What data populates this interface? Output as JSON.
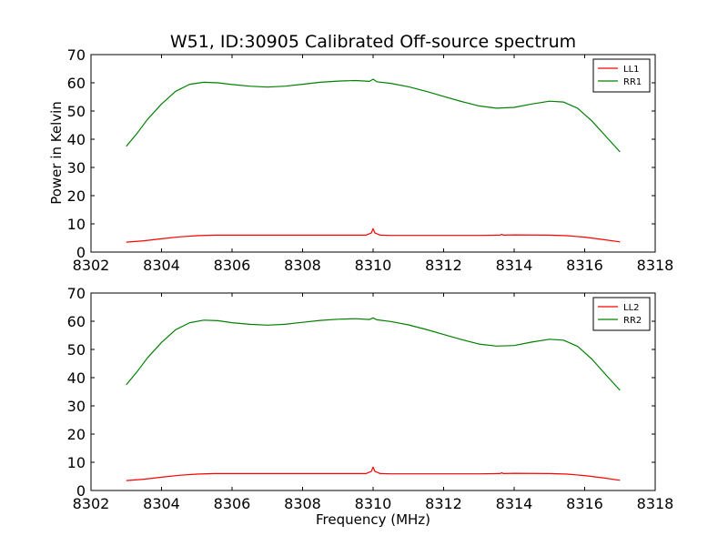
{
  "figure": {
    "title": "W51, ID:30905 Calibrated Off-source spectrum",
    "ylabel": "Power in Kelvin",
    "xlabel": "Frequency (MHz)"
  },
  "chart_data": [
    {
      "type": "line",
      "title": "W51, ID:30905 Calibrated Off-source spectrum",
      "xlabel": "",
      "ylabel": "Power in Kelvin",
      "xlim": [
        8302,
        8318
      ],
      "ylim": [
        0,
        70
      ],
      "xticks": [
        "8302",
        "8304",
        "8306",
        "8308",
        "8310",
        "8312",
        "8314",
        "8316",
        "8318"
      ],
      "yticks": [
        "0",
        "10",
        "20",
        "30",
        "40",
        "50",
        "60",
        "70"
      ],
      "grid": false,
      "legend_position": "top-right",
      "series": [
        {
          "name": "LL1",
          "color": "#ff0000",
          "x": [
            8303.0,
            8303.5,
            8304.0,
            8304.5,
            8305.0,
            8305.5,
            8306.0,
            8307.0,
            8308.0,
            8309.0,
            8309.8,
            8309.95,
            8310.0,
            8310.05,
            8310.2,
            8310.5,
            8311.0,
            8312.0,
            8313.0,
            8313.6,
            8313.65,
            8313.7,
            8314.0,
            8315.0,
            8315.5,
            8316.0,
            8316.5,
            8317.0
          ],
          "y": [
            3.5,
            4.0,
            4.7,
            5.4,
            5.8,
            6.0,
            6.0,
            6.0,
            6.0,
            6.0,
            6.0,
            6.8,
            8.3,
            6.8,
            6.0,
            5.9,
            5.9,
            5.9,
            5.9,
            6.0,
            6.3,
            6.0,
            6.1,
            6.0,
            5.8,
            5.3,
            4.5,
            3.6
          ]
        },
        {
          "name": "RR1",
          "color": "#008000",
          "x": [
            8303.0,
            8303.3,
            8303.6,
            8304.0,
            8304.4,
            8304.8,
            8305.2,
            8305.6,
            8306.0,
            8306.5,
            8307.0,
            8307.5,
            8308.0,
            8308.5,
            8309.0,
            8309.5,
            8309.9,
            8310.0,
            8310.1,
            8310.5,
            8311.0,
            8311.5,
            8312.0,
            8312.5,
            8313.0,
            8313.5,
            8314.0,
            8314.5,
            8315.0,
            8315.4,
            8315.8,
            8316.2,
            8316.6,
            8317.0
          ],
          "y": [
            37.5,
            42.0,
            47.0,
            52.5,
            57.0,
            59.5,
            60.2,
            60.0,
            59.4,
            58.8,
            58.5,
            58.8,
            59.5,
            60.2,
            60.6,
            60.8,
            60.5,
            61.3,
            60.4,
            59.8,
            58.6,
            57.0,
            55.2,
            53.4,
            51.8,
            51.0,
            51.3,
            52.5,
            53.5,
            53.2,
            51.0,
            46.5,
            41.0,
            35.5
          ]
        }
      ]
    },
    {
      "type": "line",
      "title": "",
      "xlabel": "Frequency (MHz)",
      "ylabel": "",
      "xlim": [
        8302,
        8318
      ],
      "ylim": [
        0,
        70
      ],
      "xticks": [
        "8302",
        "8304",
        "8306",
        "8308",
        "8310",
        "8312",
        "8314",
        "8316",
        "8318"
      ],
      "yticks": [
        "0",
        "10",
        "20",
        "30",
        "40",
        "50",
        "60",
        "70"
      ],
      "grid": false,
      "legend_position": "top-right",
      "series": [
        {
          "name": "LL2",
          "color": "#ff0000",
          "x": [
            8303.0,
            8303.5,
            8304.0,
            8304.5,
            8305.0,
            8305.5,
            8306.0,
            8307.0,
            8308.0,
            8309.0,
            8309.8,
            8309.95,
            8310.0,
            8310.05,
            8310.2,
            8310.5,
            8311.0,
            8312.0,
            8313.0,
            8313.6,
            8313.65,
            8313.7,
            8314.0,
            8315.0,
            8315.5,
            8316.0,
            8316.5,
            8317.0
          ],
          "y": [
            3.5,
            4.0,
            4.7,
            5.4,
            5.8,
            6.0,
            6.0,
            6.0,
            6.0,
            6.0,
            6.0,
            6.8,
            8.3,
            6.8,
            6.0,
            5.9,
            5.9,
            5.9,
            5.9,
            6.0,
            6.3,
            6.0,
            6.1,
            6.0,
            5.8,
            5.3,
            4.5,
            3.6
          ]
        },
        {
          "name": "RR2",
          "color": "#008000",
          "x": [
            8303.0,
            8303.3,
            8303.6,
            8304.0,
            8304.4,
            8304.8,
            8305.2,
            8305.6,
            8306.0,
            8306.5,
            8307.0,
            8307.5,
            8308.0,
            8308.5,
            8309.0,
            8309.5,
            8309.9,
            8310.0,
            8310.1,
            8310.5,
            8311.0,
            8311.5,
            8312.0,
            8312.5,
            8313.0,
            8313.5,
            8314.0,
            8314.5,
            8315.0,
            8315.4,
            8315.8,
            8316.2,
            8316.6,
            8317.0
          ],
          "y": [
            37.5,
            42.0,
            47.0,
            52.5,
            57.0,
            59.5,
            60.4,
            60.2,
            59.5,
            58.9,
            58.6,
            58.9,
            59.6,
            60.3,
            60.7,
            60.9,
            60.6,
            61.2,
            60.5,
            59.9,
            58.7,
            57.1,
            55.3,
            53.5,
            51.9,
            51.2,
            51.4,
            52.6,
            53.6,
            53.3,
            51.1,
            46.6,
            41.0,
            35.5
          ]
        }
      ]
    }
  ]
}
